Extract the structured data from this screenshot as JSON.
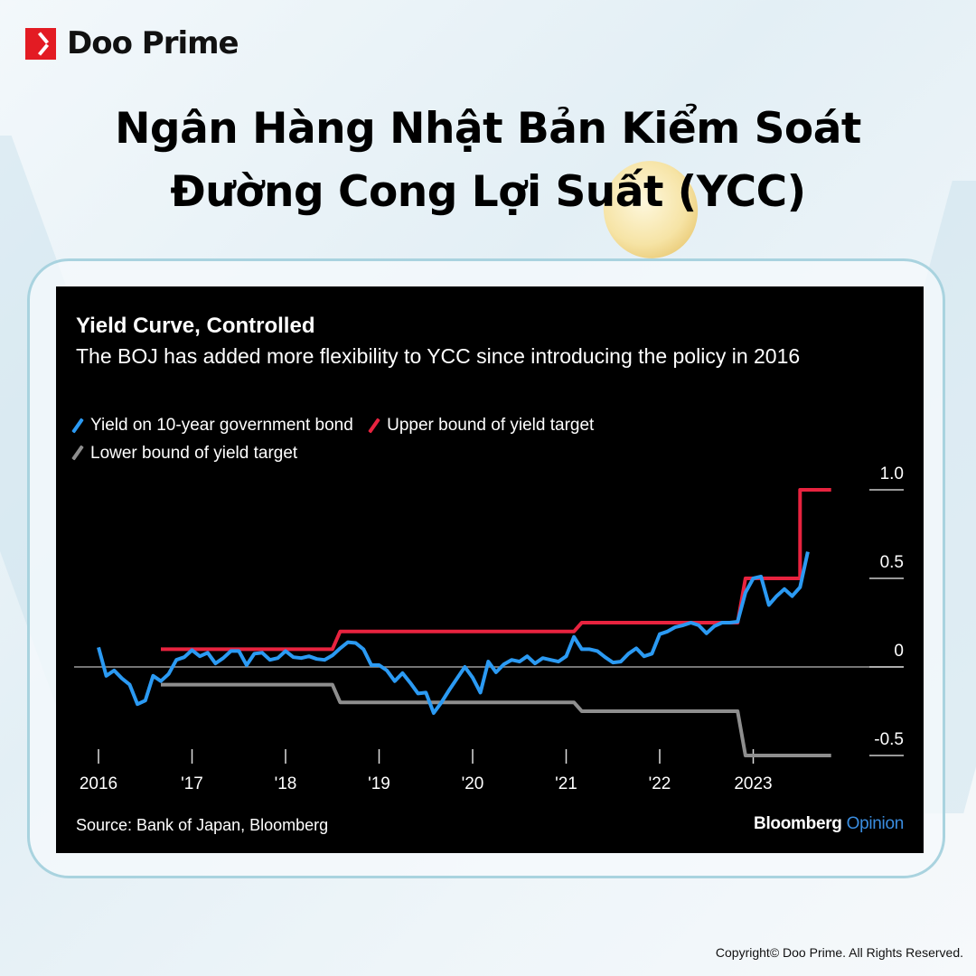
{
  "brand": {
    "name": "Doo Prime",
    "logo_color": "#e31b23"
  },
  "headline": {
    "line1": "Ngân Hàng Nhật Bản Kiểm Soát",
    "line2": "Đường Cong Lợi Suất (YCC)"
  },
  "footer": {
    "copyright": "Copyright© Doo Prime. All Rights Reserved."
  },
  "chart_data": {
    "type": "line",
    "title": "Yield Curve, Controlled",
    "subtitle": "The BOJ has added more flexibility to YCC since introducing the policy in 2016",
    "source": "Source: Bank of Japan, Bloomberg",
    "publisher": {
      "name": "Bloomberg",
      "suffix": "Opinion"
    },
    "legend_placement": "top-left",
    "grid": false,
    "x_ticks": [
      "2016",
      "'17",
      "'18",
      "'19",
      "'20",
      "'21",
      "'22",
      "2023"
    ],
    "x_tick_years": [
      2016,
      2017,
      2018,
      2019,
      2020,
      2021,
      2022,
      2023
    ],
    "y_ticks": [
      1.0,
      0.5,
      0,
      -0.5
    ],
    "y_tick_labels": [
      "1.0",
      "0.5",
      "0",
      "-0.5"
    ],
    "ylim": [
      -0.5,
      1.0
    ],
    "series": [
      {
        "name": "Yield on 10-year government bond",
        "color": "#2b9af3",
        "points": [
          [
            "2016-01",
            0.11
          ],
          [
            "2016-02",
            -0.05
          ],
          [
            "2016-03",
            -0.02
          ],
          [
            "2016-04",
            -0.065
          ],
          [
            "2016-05",
            -0.1
          ],
          [
            "2016-06",
            -0.21
          ],
          [
            "2016-07",
            -0.19
          ],
          [
            "2016-08",
            -0.05
          ],
          [
            "2016-09",
            -0.08
          ],
          [
            "2016-10",
            -0.04
          ],
          [
            "2016-11",
            0.04
          ],
          [
            "2016-12",
            0.055
          ],
          [
            "2017-01",
            0.095
          ],
          [
            "2017-02",
            0.06
          ],
          [
            "2017-03",
            0.08
          ],
          [
            "2017-04",
            0.02
          ],
          [
            "2017-05",
            0.05
          ],
          [
            "2017-06",
            0.09
          ],
          [
            "2017-07",
            0.09
          ],
          [
            "2017-08",
            0.01
          ],
          [
            "2017-09",
            0.075
          ],
          [
            "2017-10",
            0.08
          ],
          [
            "2017-11",
            0.04
          ],
          [
            "2017-12",
            0.05
          ],
          [
            "2018-01",
            0.09
          ],
          [
            "2018-02",
            0.055
          ],
          [
            "2018-03",
            0.05
          ],
          [
            "2018-04",
            0.06
          ],
          [
            "2018-05",
            0.045
          ],
          [
            "2018-06",
            0.04
          ],
          [
            "2018-07",
            0.065
          ],
          [
            "2018-08",
            0.105
          ],
          [
            "2018-09",
            0.14
          ],
          [
            "2018-10",
            0.135
          ],
          [
            "2018-11",
            0.1
          ],
          [
            "2018-12",
            0.01
          ],
          [
            "2019-01",
            0.01
          ],
          [
            "2019-02",
            -0.02
          ],
          [
            "2019-03",
            -0.08
          ],
          [
            "2019-04",
            -0.035
          ],
          [
            "2019-05",
            -0.09
          ],
          [
            "2019-06",
            -0.15
          ],
          [
            "2019-07",
            -0.145
          ],
          [
            "2019-08",
            -0.26
          ],
          [
            "2019-09",
            -0.2
          ],
          [
            "2019-10",
            -0.13
          ],
          [
            "2019-11",
            -0.065
          ],
          [
            "2019-12",
            0.0
          ],
          [
            "2020-01",
            -0.06
          ],
          [
            "2020-02",
            -0.145
          ],
          [
            "2020-03",
            0.03
          ],
          [
            "2020-04",
            -0.03
          ],
          [
            "2020-05",
            0.015
          ],
          [
            "2020-06",
            0.04
          ],
          [
            "2020-07",
            0.03
          ],
          [
            "2020-08",
            0.06
          ],
          [
            "2020-09",
            0.02
          ],
          [
            "2020-10",
            0.05
          ],
          [
            "2020-11",
            0.04
          ],
          [
            "2020-12",
            0.03
          ],
          [
            "2021-01",
            0.06
          ],
          [
            "2021-02",
            0.17
          ],
          [
            "2021-03",
            0.1
          ],
          [
            "2021-04",
            0.1
          ],
          [
            "2021-05",
            0.09
          ],
          [
            "2021-06",
            0.055
          ],
          [
            "2021-07",
            0.025
          ],
          [
            "2021-08",
            0.03
          ],
          [
            "2021-09",
            0.075
          ],
          [
            "2021-10",
            0.105
          ],
          [
            "2021-11",
            0.06
          ],
          [
            "2021-12",
            0.075
          ],
          [
            "2022-01",
            0.185
          ],
          [
            "2022-02",
            0.2
          ],
          [
            "2022-03",
            0.225
          ],
          [
            "2022-04",
            0.235
          ],
          [
            "2022-05",
            0.25
          ],
          [
            "2022-06",
            0.235
          ],
          [
            "2022-07",
            0.19
          ],
          [
            "2022-08",
            0.23
          ],
          [
            "2022-09",
            0.25
          ],
          [
            "2022-10",
            0.25
          ],
          [
            "2022-11",
            0.255
          ],
          [
            "2022-12",
            0.42
          ],
          [
            "2023-01",
            0.5
          ],
          [
            "2023-02",
            0.51
          ],
          [
            "2023-03",
            0.35
          ],
          [
            "2023-04",
            0.4
          ],
          [
            "2023-05",
            0.44
          ],
          [
            "2023-06",
            0.4
          ],
          [
            "2023-07",
            0.45
          ],
          [
            "2023-08",
            0.65
          ]
        ]
      },
      {
        "name": "Upper bound of yield target",
        "color": "#e8233f",
        "points": [
          [
            "2016-09",
            0.1
          ],
          [
            "2018-07",
            0.1
          ],
          [
            "2018-08",
            0.2
          ],
          [
            "2021-02",
            0.2
          ],
          [
            "2021-03",
            0.25
          ],
          [
            "2022-11",
            0.25
          ],
          [
            "2022-12",
            0.5
          ],
          [
            "2023-07",
            0.5
          ],
          [
            "2023-07",
            1.0
          ],
          [
            "2023-11",
            1.0
          ]
        ]
      },
      {
        "name": "Lower bound of yield target",
        "color": "#8e8e8e",
        "points": [
          [
            "2016-09",
            -0.1
          ],
          [
            "2018-07",
            -0.1
          ],
          [
            "2018-08",
            -0.2
          ],
          [
            "2021-02",
            -0.2
          ],
          [
            "2021-03",
            -0.25
          ],
          [
            "2022-11",
            -0.25
          ],
          [
            "2022-12",
            -0.5
          ],
          [
            "2023-11",
            -0.5
          ]
        ]
      }
    ]
  }
}
